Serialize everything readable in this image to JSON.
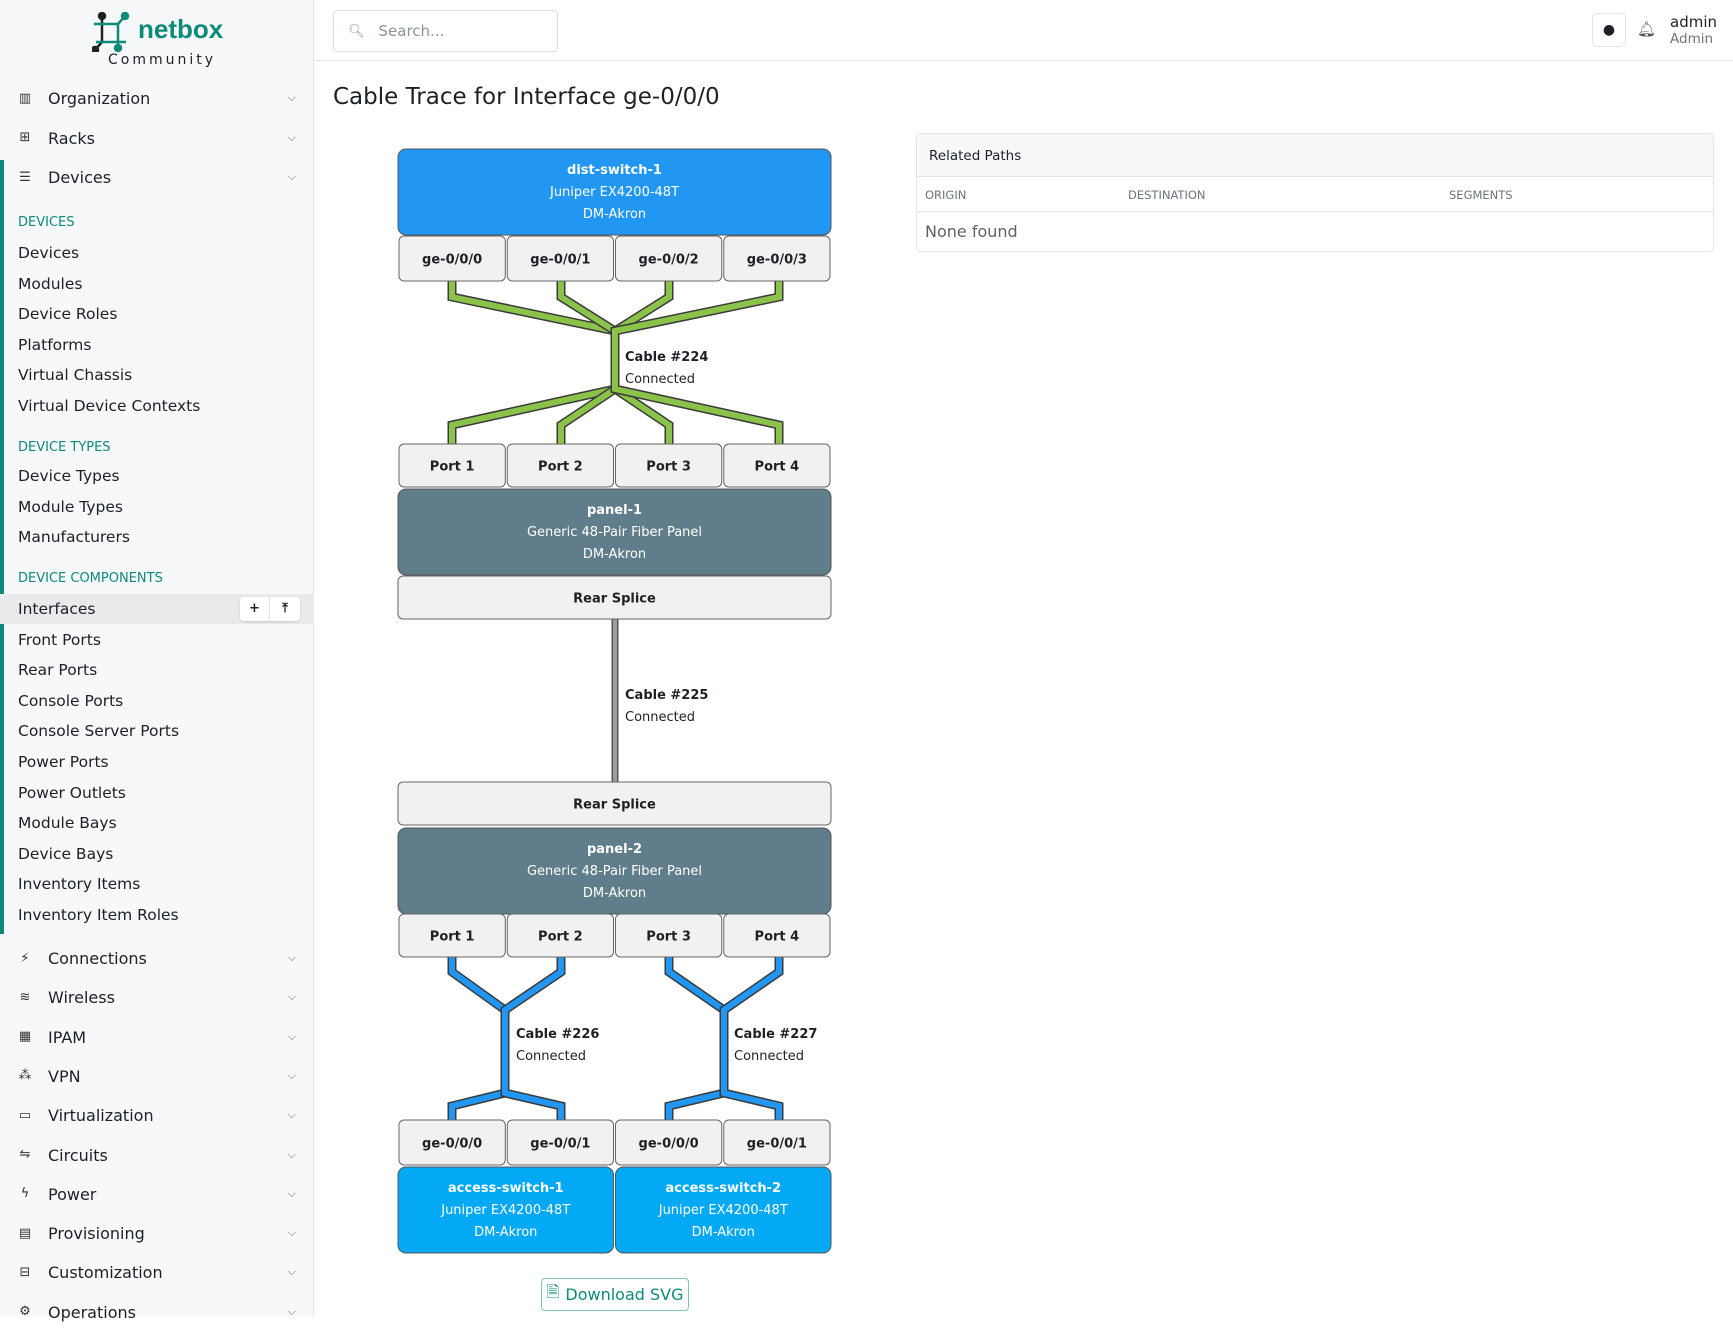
{
  "brand": {
    "name": "netbox",
    "edition": "Community"
  },
  "search": {
    "placeholder": "Search..."
  },
  "user": {
    "name": "admin",
    "role": "Admin"
  },
  "page_title": "Cable Trace for Interface ge-0/0/0",
  "sidebar": {
    "top": [
      {
        "label": "Organization",
        "icon": "building-icon"
      },
      {
        "label": "Racks",
        "icon": "rack-icon"
      },
      {
        "label": "Devices",
        "icon": "server-icon"
      }
    ],
    "sections": [
      {
        "heading": "DEVICES",
        "items": [
          "Devices",
          "Modules",
          "Device Roles",
          "Platforms",
          "Virtual Chassis",
          "Virtual Device Contexts"
        ]
      },
      {
        "heading": "DEVICE TYPES",
        "items": [
          "Device Types",
          "Module Types",
          "Manufacturers"
        ]
      },
      {
        "heading": "DEVICE COMPONENTS",
        "items": [
          "Interfaces",
          "Front Ports",
          "Rear Ports",
          "Console Ports",
          "Console Server Ports",
          "Power Ports",
          "Power Outlets",
          "Module Bays",
          "Device Bays",
          "Inventory Items",
          "Inventory Item Roles"
        ]
      }
    ],
    "active_item": "Interfaces",
    "bottom": [
      {
        "label": "Connections",
        "icon": "plug-icon"
      },
      {
        "label": "Wireless",
        "icon": "wifi-icon"
      },
      {
        "label": "IPAM",
        "icon": "ipam-icon"
      },
      {
        "label": "VPN",
        "icon": "vpn-icon"
      },
      {
        "label": "Virtualization",
        "icon": "monitor-icon"
      },
      {
        "label": "Circuits",
        "icon": "circuits-icon"
      },
      {
        "label": "Power",
        "icon": "bolt-icon"
      },
      {
        "label": "Provisioning",
        "icon": "file-icon"
      },
      {
        "label": "Customization",
        "icon": "toolbox-icon"
      },
      {
        "label": "Operations",
        "icon": "cogs-icon"
      }
    ]
  },
  "trace": {
    "dist_switch": {
      "name": "dist-switch-1",
      "type": "Juniper EX4200-48T",
      "site": "DM-Akron",
      "color": "#2196f3"
    },
    "dist_ports": [
      "ge-0/0/0",
      "ge-0/0/1",
      "ge-0/0/2",
      "ge-0/0/3"
    ],
    "cable1": {
      "label": "Cable #224",
      "status": "Connected",
      "color": "#8bc34a"
    },
    "panel1_front": [
      "Port 1",
      "Port 2",
      "Port 3",
      "Port 4"
    ],
    "panel1": {
      "name": "panel-1",
      "type": "Generic 48-Pair Fiber Panel",
      "site": "DM-Akron",
      "color": "#607d8b"
    },
    "panel1_rear": "Rear Splice",
    "cable2": {
      "label": "Cable #225",
      "status": "Connected",
      "color": "#9e9e9e"
    },
    "panel2_rear": "Rear Splice",
    "panel2": {
      "name": "panel-2",
      "type": "Generic 48-Pair Fiber Panel",
      "site": "DM-Akron",
      "color": "#607d8b"
    },
    "panel2_front": [
      "Port 1",
      "Port 2",
      "Port 3",
      "Port 4"
    ],
    "cable3": {
      "label": "Cable #226",
      "status": "Connected",
      "color": "#2196f3"
    },
    "cable4": {
      "label": "Cable #227",
      "status": "Connected",
      "color": "#2196f3"
    },
    "access_ports": [
      "ge-0/0/0",
      "ge-0/0/1",
      "ge-0/0/0",
      "ge-0/0/1"
    ],
    "access1": {
      "name": "access-switch-1",
      "type": "Juniper EX4200-48T",
      "site": "DM-Akron",
      "color": "#03a9f4"
    },
    "access2": {
      "name": "access-switch-2",
      "type": "Juniper EX4200-48T",
      "site": "DM-Akron",
      "color": "#03a9f4"
    }
  },
  "download_label": "Download SVG",
  "related_paths": {
    "title": "Related Paths",
    "columns": [
      "ORIGIN",
      "DESTINATION",
      "SEGMENTS"
    ],
    "empty": "None found"
  }
}
